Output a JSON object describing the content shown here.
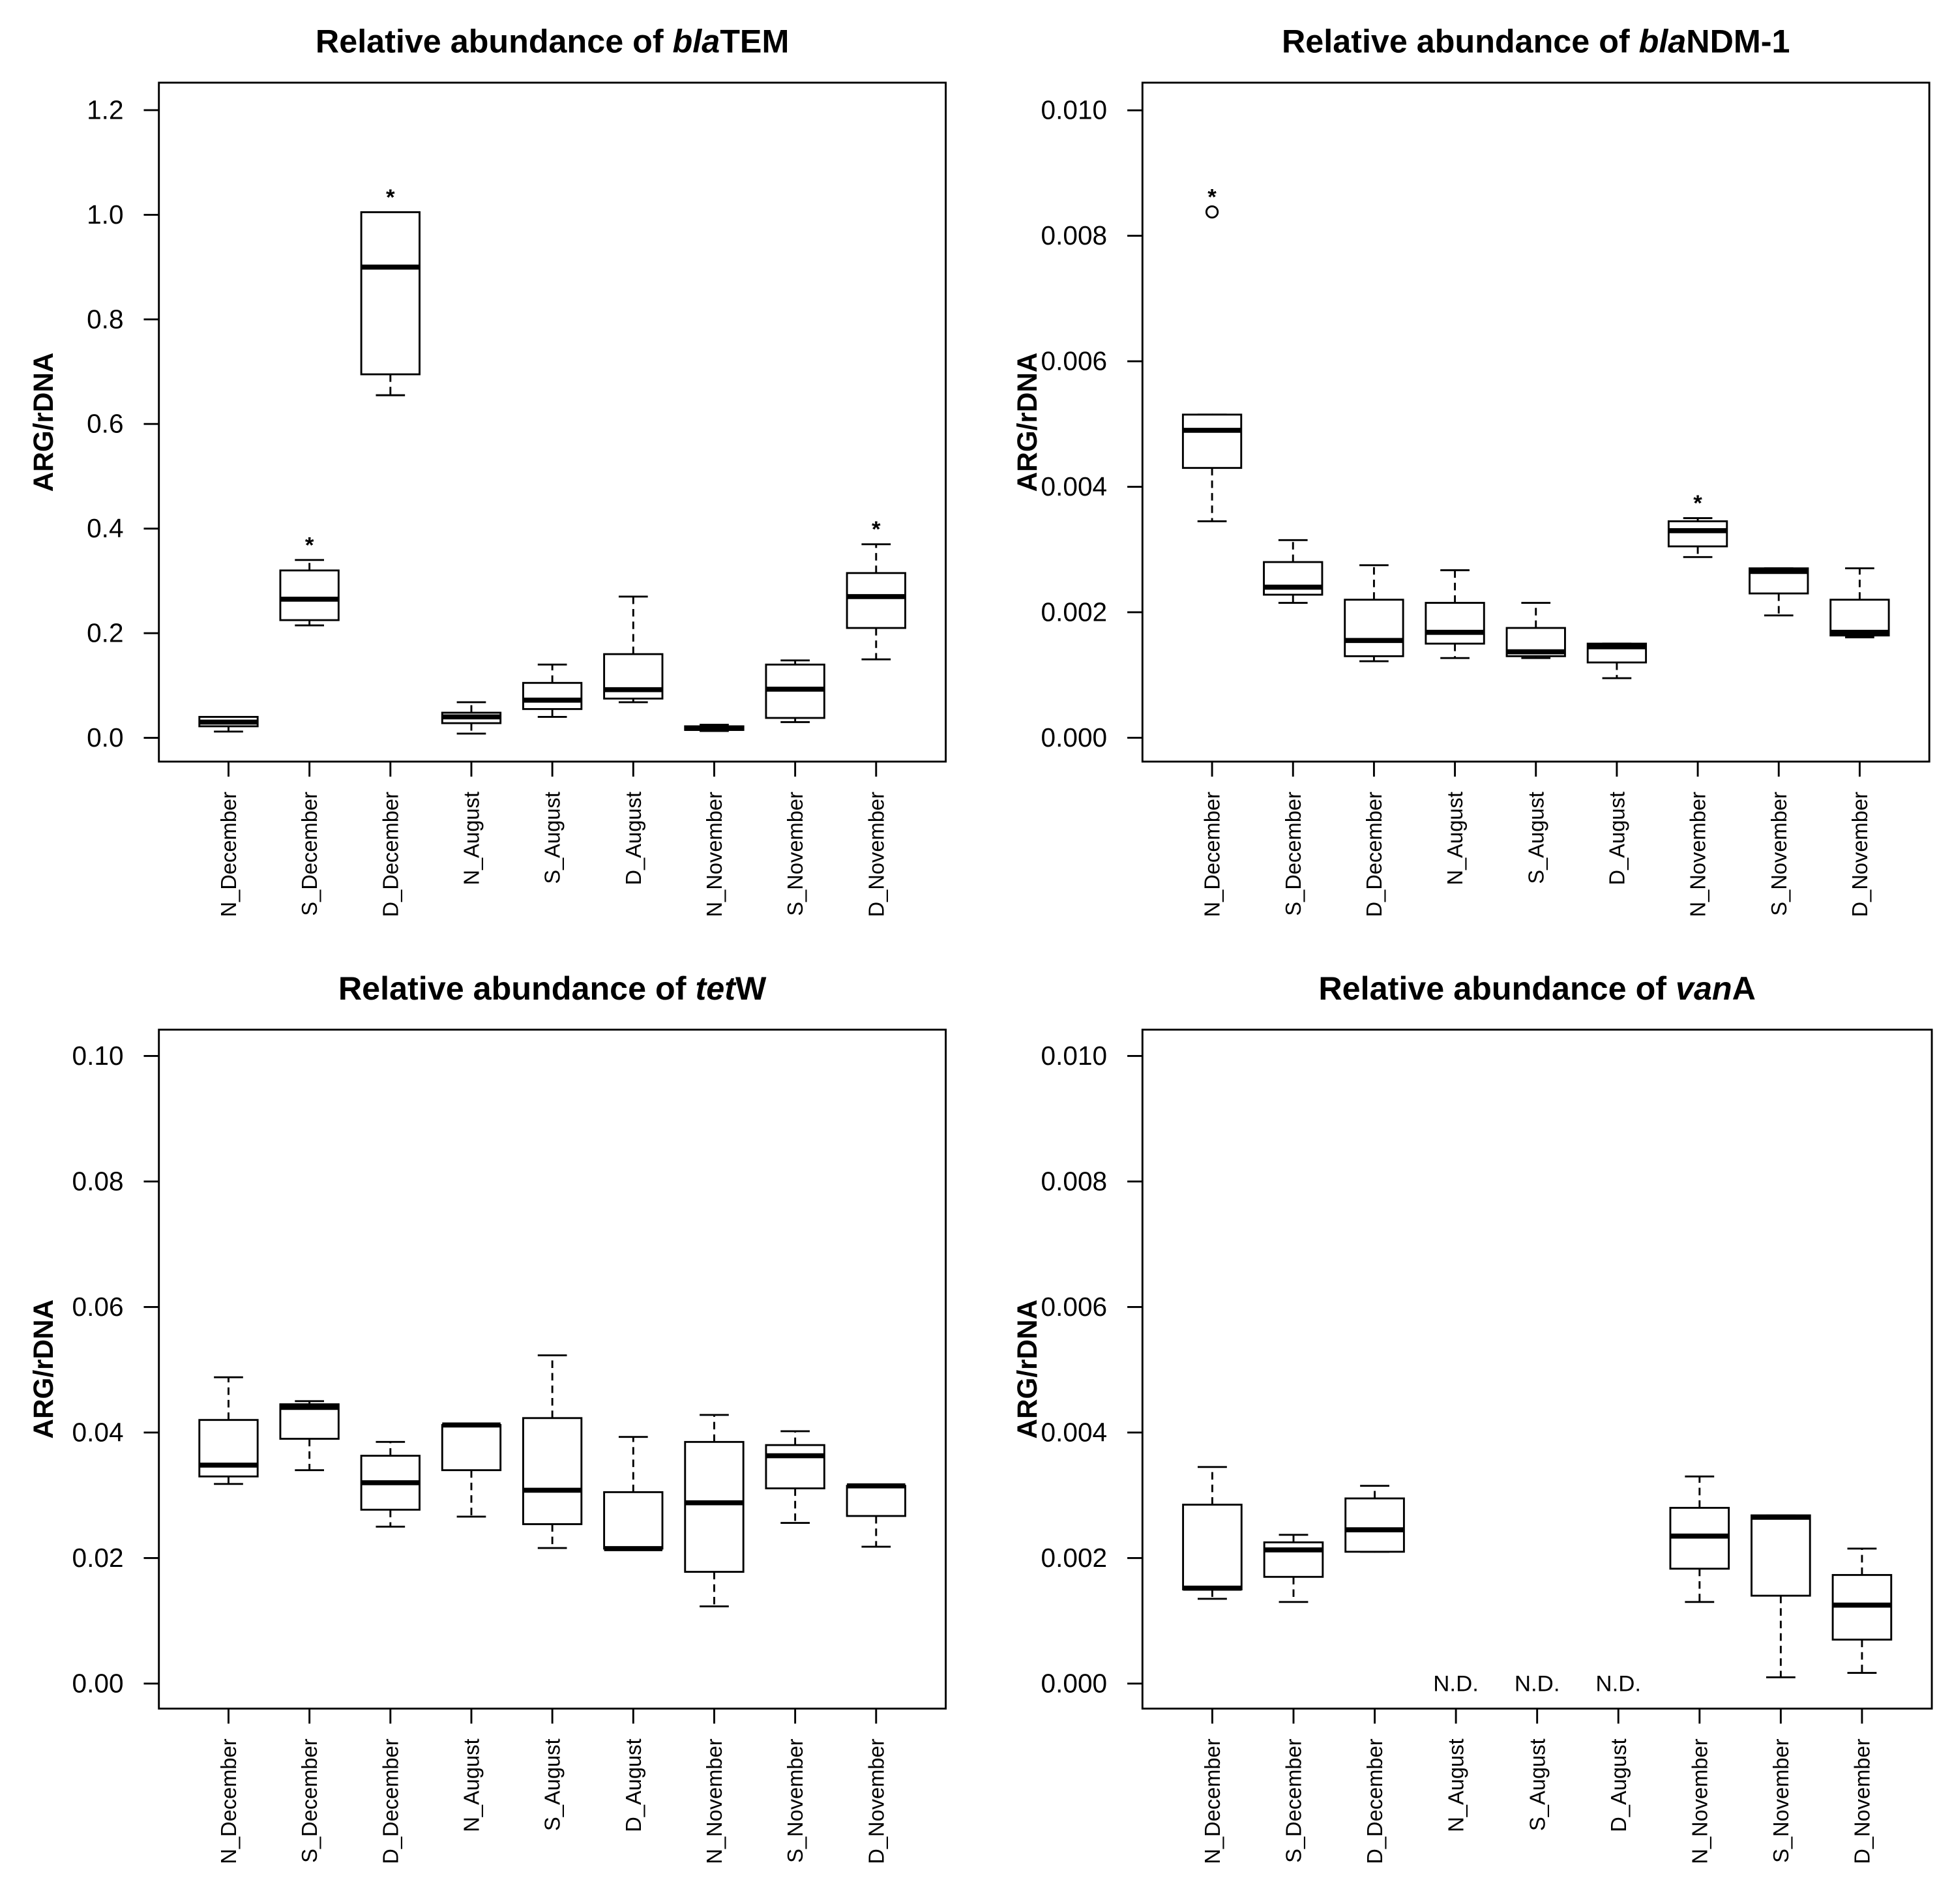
{
  "chart_data": [
    {
      "type": "box",
      "title": [
        "Relative abundance of ",
        "bla",
        "TEM"
      ],
      "title_italic": [
        false,
        true,
        false
      ],
      "ylabel": "ARG/rDNA",
      "categories": [
        "N_December",
        "S_December",
        "D_December",
        "N_August",
        "S_August",
        "D_August",
        "N_November",
        "S_November",
        "D_November"
      ],
      "stats": {
        "whisker_low": [
          0.012,
          0.215,
          0.655,
          0.008,
          0.04,
          0.068,
          0.013,
          0.03,
          0.15
        ],
        "q1": [
          0.022,
          0.225,
          0.695,
          0.028,
          0.055,
          0.075,
          0.015,
          0.038,
          0.21
        ],
        "median": [
          0.03,
          0.265,
          0.9,
          0.04,
          0.072,
          0.092,
          0.018,
          0.093,
          0.27
        ],
        "q3": [
          0.04,
          0.32,
          1.005,
          0.048,
          0.105,
          0.16,
          0.022,
          0.14,
          0.315
        ],
        "whisker_high": [
          0.04,
          0.34,
          1.005,
          0.068,
          0.14,
          0.27,
          0.025,
          0.148,
          0.37
        ]
      },
      "outliers": [
        [],
        [],
        [],
        [],
        [],
        [],
        [],
        [],
        []
      ],
      "significance": [
        null,
        "*",
        "*",
        null,
        null,
        null,
        null,
        null,
        "*"
      ],
      "value_labels": [
        null,
        null,
        null,
        null,
        null,
        null,
        null,
        null,
        null
      ],
      "ylim": [
        -0.0455,
        1.2526
      ],
      "yticks": [
        {
          "value": 0,
          "label": "0.0"
        },
        {
          "value": 0.2,
          "label": "0.2"
        },
        {
          "value": 0.4,
          "label": "0.4"
        },
        {
          "value": 0.6,
          "label": "0.6"
        },
        {
          "value": 0.8,
          "label": "0.8"
        },
        {
          "value": 1,
          "label": "1.0"
        },
        {
          "value": 1.2,
          "label": "1.2"
        }
      ]
    },
    {
      "type": "box",
      "title": [
        "Relative abundance of ",
        "bla",
        "NDM-1"
      ],
      "title_italic": [
        false,
        true,
        false
      ],
      "ylabel": "ARG/rDNA",
      "categories": [
        "N_December",
        "S_December",
        "D_December",
        "N_August",
        "S_August",
        "D_August",
        "N_November",
        "S_November",
        "D_November"
      ],
      "stats": {
        "whisker_low": [
          0.00345,
          0.00215,
          0.00122,
          0.00127,
          0.00127,
          0.00095,
          0.00288,
          0.00195,
          0.0016
        ],
        "q1": [
          0.0043,
          0.00228,
          0.0013,
          0.0015,
          0.0013,
          0.0012,
          0.00305,
          0.0023,
          0.00163
        ],
        "median": [
          0.0049,
          0.0024,
          0.00155,
          0.00168,
          0.00137,
          0.00145,
          0.0033,
          0.00265,
          0.00168
        ],
        "q3": [
          0.00515,
          0.0028,
          0.0022,
          0.00215,
          0.00175,
          0.0015,
          0.00345,
          0.0027,
          0.0022
        ],
        "whisker_high": [
          0.00515,
          0.00315,
          0.00275,
          0.00267,
          0.00215,
          0.0015,
          0.0035,
          0.0027,
          0.0027
        ]
      },
      "outliers": [
        [
          0.00838
        ],
        [],
        [],
        [],
        [],
        [],
        [],
        [],
        []
      ],
      "significance": [
        "*",
        null,
        null,
        null,
        null,
        null,
        "*",
        null,
        null
      ],
      "value_labels": [
        null,
        null,
        null,
        null,
        null,
        null,
        null,
        null,
        null
      ],
      "ylim": [
        -0.00038,
        0.01044
      ],
      "yticks": [
        {
          "value": 0,
          "label": "0.000"
        },
        {
          "value": 0.002,
          "label": "0.002"
        },
        {
          "value": 0.004,
          "label": "0.004"
        },
        {
          "value": 0.006,
          "label": "0.006"
        },
        {
          "value": 0.008,
          "label": "0.008"
        },
        {
          "value": 0.01,
          "label": "0.010"
        }
      ]
    },
    {
      "type": "box",
      "title": [
        "Relative abundance of ",
        "tet",
        "W"
      ],
      "title_italic": [
        false,
        true,
        false
      ],
      "ylabel": "ARG/rDNA",
      "categories": [
        "N_December",
        "S_December",
        "D_December",
        "N_August",
        "S_August",
        "D_August",
        "N_November",
        "S_November",
        "D_November"
      ],
      "stats": {
        "whisker_low": [
          0.0318,
          0.034,
          0.025,
          0.0266,
          0.0216,
          0.0215,
          0.0123,
          0.0256,
          0.0218
        ],
        "q1": [
          0.033,
          0.039,
          0.0277,
          0.034,
          0.0254,
          0.0215,
          0.0178,
          0.0311,
          0.0267
        ],
        "median": [
          0.0348,
          0.044,
          0.032,
          0.0412,
          0.0308,
          0.0215,
          0.0288,
          0.0363,
          0.0315
        ],
        "q3": [
          0.042,
          0.0445,
          0.0363,
          0.0412,
          0.0423,
          0.0305,
          0.0385,
          0.038,
          0.0315
        ],
        "whisker_high": [
          0.0488,
          0.045,
          0.0385,
          0.0412,
          0.0523,
          0.0393,
          0.0428,
          0.0402,
          0.0315
        ]
      },
      "outliers": [
        [],
        [],
        [],
        [],
        [],
        [],
        [],
        [],
        []
      ],
      "significance": [
        null,
        null,
        null,
        null,
        null,
        null,
        null,
        null,
        null
      ],
      "value_labels": [
        null,
        null,
        null,
        null,
        null,
        null,
        null,
        null,
        null
      ],
      "ylim": [
        -0.00399,
        0.10419
      ],
      "yticks": [
        {
          "value": 0,
          "label": "0.00"
        },
        {
          "value": 0.02,
          "label": "0.02"
        },
        {
          "value": 0.04,
          "label": "0.04"
        },
        {
          "value": 0.06,
          "label": "0.06"
        },
        {
          "value": 0.08,
          "label": "0.08"
        },
        {
          "value": 0.1,
          "label": "0.10"
        }
      ]
    },
    {
      "type": "box",
      "title": [
        "Relative abundance of ",
        "van",
        "A"
      ],
      "title_italic": [
        false,
        true,
        false
      ],
      "ylabel": "ARG/rDNA",
      "categories": [
        "N_December",
        "S_December",
        "D_December",
        "N_August",
        "S_August",
        "D_August",
        "N_November",
        "S_November",
        "D_November"
      ],
      "stats": {
        "whisker_low": [
          0.00135,
          0.0013,
          0.0021,
          null,
          null,
          null,
          0.0013,
          0.0001,
          0.00017
        ],
        "q1": [
          0.0015,
          0.0017,
          0.0021,
          null,
          null,
          null,
          0.00183,
          0.0014,
          0.0007
        ],
        "median": [
          0.00152,
          0.00213,
          0.00245,
          null,
          null,
          null,
          0.00235,
          0.00265,
          0.00125
        ],
        "q3": [
          0.00285,
          0.00225,
          0.00295,
          null,
          null,
          null,
          0.0028,
          0.00268,
          0.00173
        ],
        "whisker_high": [
          0.00345,
          0.00237,
          0.00315,
          null,
          null,
          null,
          0.0033,
          0.00268,
          0.00215
        ]
      },
      "outliers": [
        [],
        [],
        [],
        [],
        [],
        [],
        [],
        [],
        []
      ],
      "significance": [
        null,
        null,
        null,
        null,
        null,
        null,
        null,
        null,
        null
      ],
      "value_labels": [
        null,
        null,
        null,
        "N.D.",
        "N.D.",
        "N.D.",
        null,
        null,
        null
      ],
      "ylim": [
        -0.000399,
        0.010419
      ],
      "yticks": [
        {
          "value": 0,
          "label": "0.000"
        },
        {
          "value": 0.002,
          "label": "0.002"
        },
        {
          "value": 0.004,
          "label": "0.004"
        },
        {
          "value": 0.006,
          "label": "0.006"
        },
        {
          "value": 0.008,
          "label": "0.008"
        },
        {
          "value": 0.01,
          "label": "0.010"
        }
      ]
    }
  ]
}
